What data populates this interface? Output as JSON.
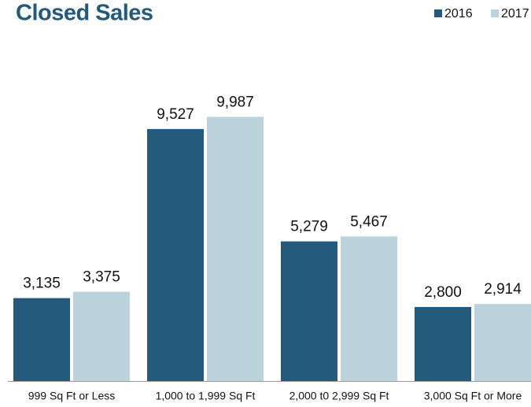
{
  "chart_data": {
    "type": "bar",
    "title": "Closed Sales",
    "categories": [
      "999 Sq Ft or Less",
      "1,000 to 1,999 Sq Ft",
      "2,000 t0 2,999 Sq Ft",
      "3,000 Sq Ft or More"
    ],
    "series": [
      {
        "name": "2016",
        "color": "#245a7b",
        "values": [
          3135,
          9527,
          5279,
          2800
        ],
        "value_labels": [
          "3,135",
          "9,527",
          "5,279",
          "2,800"
        ]
      },
      {
        "name": "2017",
        "color": "#bcd3dc",
        "values": [
          3375,
          9987,
          5467,
          2914
        ],
        "value_labels": [
          "3,375",
          "9,987",
          "5,467",
          "2,914"
        ]
      }
    ],
    "legend": "top-right"
  }
}
